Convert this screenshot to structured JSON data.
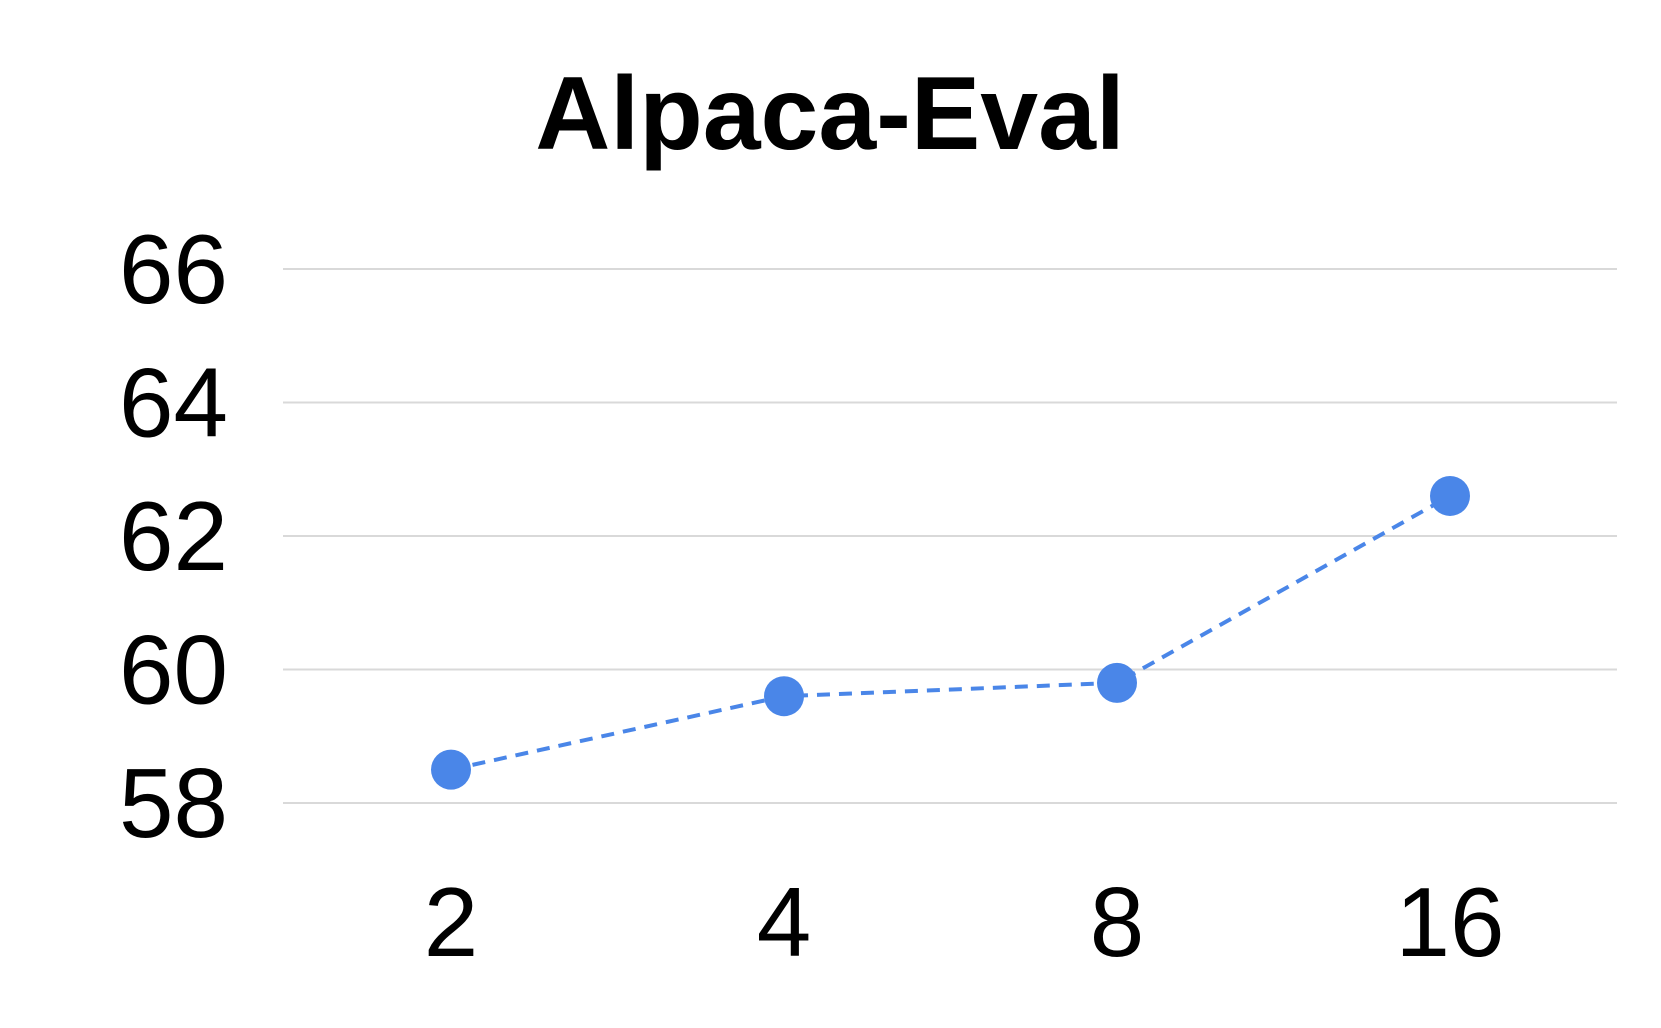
{
  "chart_data": {
    "type": "line",
    "title": "Alpaca-Eval",
    "xlabel": "",
    "ylabel": "",
    "categories": [
      "2",
      "4",
      "8",
      "16"
    ],
    "yticks": [
      "58",
      "60",
      "62",
      "64",
      "66"
    ],
    "ylim": [
      58,
      66
    ],
    "grid": true,
    "series": [
      {
        "values": [
          58.5,
          59.6,
          59.8,
          62.6
        ],
        "color": "#4a86e8",
        "line_style": "dashed",
        "marker": "circle"
      }
    ]
  },
  "colors": {
    "series": "#4a86e8",
    "gridline": "#d9d9d9",
    "text": "#000000",
    "background": "#ffffff"
  }
}
